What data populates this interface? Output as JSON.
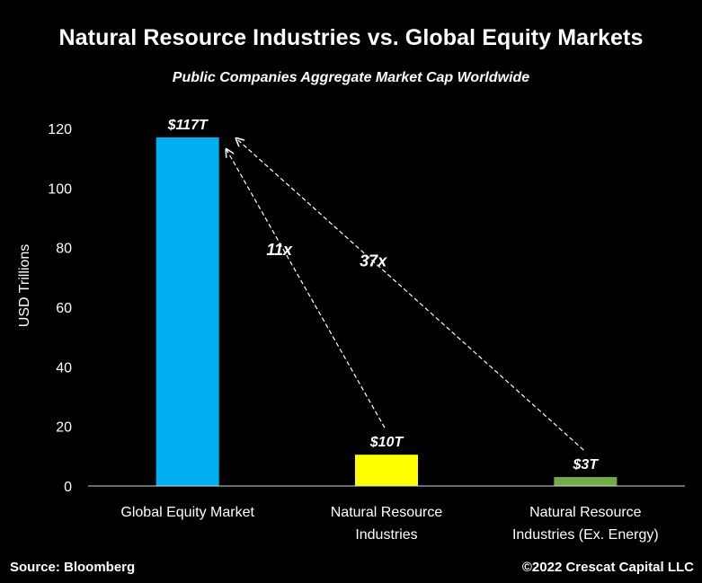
{
  "header": {
    "title": "Natural Resource Industries vs. Global Equity Markets",
    "subtitle": "Public Companies Aggregate Market Cap Worldwide"
  },
  "footer": {
    "source": "Source: Bloomberg",
    "copyright": "©2022 Crescat Capital LLC"
  },
  "chart_data": {
    "type": "bar",
    "title": "Natural Resource Industries vs. Global Equity Markets",
    "subtitle": "Public Companies Aggregate Market Cap Worldwide",
    "xlabel": "",
    "ylabel": "USD Trillions",
    "ylim": [
      0,
      120
    ],
    "yticks": [
      0,
      20,
      40,
      60,
      80,
      100,
      120
    ],
    "grid": false,
    "categories": [
      [
        "Global Equity Market"
      ],
      [
        "Natural Resource",
        "Industries"
      ],
      [
        "Natural Resource",
        "Industries (Ex. Energy)"
      ]
    ],
    "values": [
      117,
      10.5,
      3
    ],
    "data_labels": [
      "$117T",
      "$10T",
      "$3T"
    ],
    "colors": [
      "#00b0f0",
      "#ffff00",
      "#70ad47"
    ],
    "annotations": [
      {
        "text": "11x",
        "from_category": 1,
        "to_category": 0,
        "style": "dashed-arrow"
      },
      {
        "text": "37x",
        "from_category": 2,
        "to_category": 0,
        "style": "dashed-arrow"
      }
    ]
  }
}
